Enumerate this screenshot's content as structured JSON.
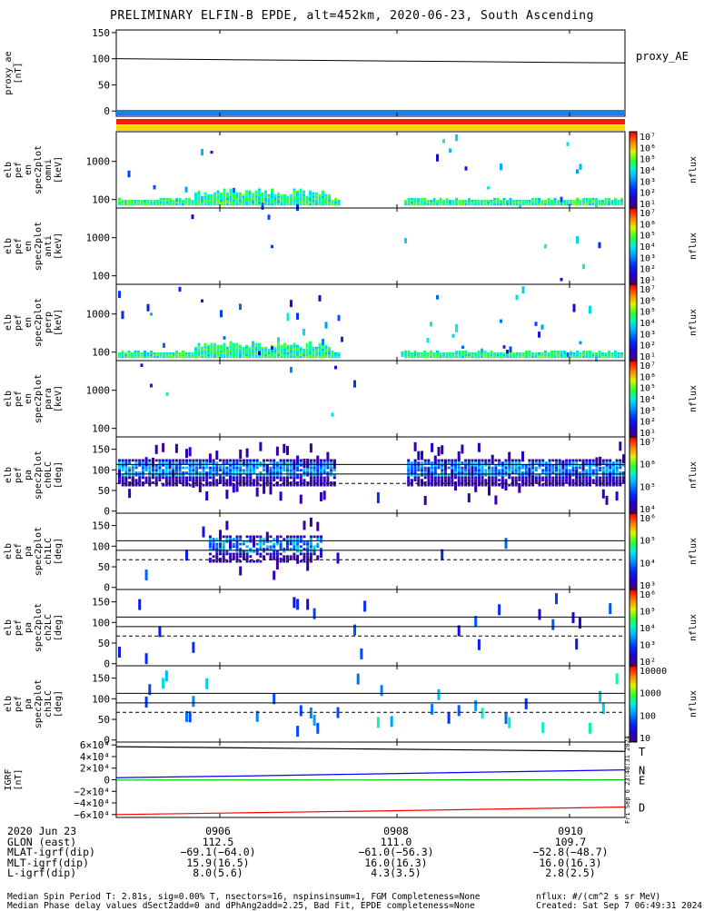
{
  "title": "PRELIMINARY ELFIN-B EPDE, alt=452km, 2020-06-23, South Ascending",
  "colors": {
    "frame": "#000000",
    "bar_blue": "#1f7fe0",
    "bar_red": "#ff1a00",
    "bar_yellow": "#ffd800",
    "bfield_T": "#000000",
    "bfield_N": "#0000ff",
    "bfield_E": "#00c000",
    "bfield_D": "#ff0000"
  },
  "panels": [
    {
      "id": "proxy_ae",
      "ylabel": [
        "proxy_ae",
        "[nT]"
      ],
      "right_label": "proxy_AE",
      "yticks": [
        "150",
        "100",
        "50",
        "0"
      ]
    },
    {
      "id": "en_omni",
      "ylabel": [
        "elb",
        "pef",
        "en",
        "spec2plot",
        "omni",
        "[keV]"
      ],
      "yticks": [
        "1000",
        "100"
      ],
      "cbar": "nflux"
    },
    {
      "id": "en_anti",
      "ylabel": [
        "elb",
        "pef",
        "en",
        "spec2plot",
        "anti",
        "[keV]"
      ],
      "yticks": [
        "1000",
        "100"
      ],
      "cbar": "nflux"
    },
    {
      "id": "en_perp",
      "ylabel": [
        "elb",
        "pef",
        "en",
        "spec2plot",
        "perp",
        "[keV]"
      ],
      "yticks": [
        "1000",
        "100"
      ],
      "cbar": "nflux"
    },
    {
      "id": "en_para",
      "ylabel": [
        "elb",
        "pef",
        "en",
        "spec2plot",
        "para",
        "[keV]"
      ],
      "yticks": [
        "1000",
        "100"
      ],
      "cbar": "nflux"
    },
    {
      "id": "pa_ch0",
      "ylabel": [
        "elb",
        "pef",
        "pa",
        "spec2plot",
        "ch0LC",
        "[deg]"
      ],
      "yticks": [
        "150",
        "100",
        "50",
        "0"
      ],
      "cbar": "nflux"
    },
    {
      "id": "pa_ch1",
      "ylabel": [
        "elb",
        "pef",
        "pa",
        "spec2plot",
        "ch1LC",
        "[deg]"
      ],
      "yticks": [
        "150",
        "100",
        "50",
        "0"
      ],
      "cbar": "nflux"
    },
    {
      "id": "pa_ch2",
      "ylabel": [
        "elb",
        "pef",
        "pa",
        "spec2plot",
        "ch2LC",
        "[deg]"
      ],
      "yticks": [
        "150",
        "100",
        "50",
        "0"
      ],
      "cbar": "nflux"
    },
    {
      "id": "pa_ch3",
      "ylabel": [
        "elb",
        "pef",
        "pa",
        "spec2plot",
        "ch3LC",
        "[deg]"
      ],
      "yticks": [
        "150",
        "100",
        "50",
        "0"
      ],
      "cbar": "nflux"
    },
    {
      "id": "bfield",
      "ylabel": [
        "IGRF",
        "[nT]"
      ],
      "yticks": [
        "6×10⁴",
        "4×10⁴",
        "2×10⁴",
        "0",
        "−2×10⁴",
        "−4×10⁴",
        "−6×10⁴"
      ],
      "components": [
        "T",
        "N",
        "E",
        "D"
      ],
      "side_text": "Fri Sep  6 23:48:31 2024"
    }
  ],
  "colorbar_ticks": {
    "en": [
      "10⁷",
      "10⁶",
      "10⁵",
      "10⁴",
      "10³",
      "10²",
      "10¹"
    ],
    "ch0": [
      "10⁷",
      "10⁶",
      "10⁵",
      "10⁴"
    ],
    "ch1": [
      "10⁶",
      "10⁵",
      "10⁴",
      "10³"
    ],
    "ch2": [
      "10⁶",
      "10⁵",
      "10⁴",
      "10³",
      "10²"
    ],
    "ch3": [
      "10000",
      "1000",
      "100",
      "10"
    ]
  },
  "footer": {
    "rows": [
      {
        "label": "2020 Jun 23",
        "values": [
          "0906",
          "0908",
          "0910"
        ]
      },
      {
        "label": "GLON (east)",
        "values": [
          "112.5",
          "111.0",
          "109.7"
        ]
      },
      {
        "label": "MLAT-igrf(dip)",
        "values": [
          "−69.1(−64.0)",
          "−61.0(−56.3)",
          "−52.8(−48.7)"
        ]
      },
      {
        "label": "MLT-igrf(dip)",
        "values": [
          "15.9(16.5)",
          "16.0(16.3)",
          "16.0(16.3)"
        ]
      },
      {
        "label": "L-igrf(dip)",
        "values": [
          "8.0(5.6)",
          "4.3(3.5)",
          "2.8(2.5)"
        ]
      }
    ],
    "note1": "Median Spin Period T: 2.81s, sig=0.00% T, nsectors=16, nspinsinsum=1, FGM Completeness=None",
    "note1_right": "nflux: #/(cm^2 s sr MeV)",
    "note2": "Median Phase delay values dSect2add=0 and dPhAng2add=2.25, Bad Fit, EPDE completeness=None",
    "note2_right": "Created: Sat Sep  7 06:49:31 2024"
  },
  "chart_data": {
    "type": "heatmap",
    "title": "PRELIMINARY ELFIN-B EPDE, alt=452km, 2020-06-23, South Ascending",
    "x": {
      "ticks": [
        "0906",
        "0908",
        "0910"
      ]
    },
    "proxy_ae": {
      "ylim": [
        -10,
        155
      ],
      "values": [
        100,
        99,
        98,
        97,
        96,
        95,
        94,
        93,
        92
      ]
    },
    "bfield": {
      "ylim": [
        -65000,
        65000
      ],
      "T": [
        57000,
        55000,
        53000,
        51000,
        49000
      ],
      "N": [
        3500,
        6500,
        10000,
        13500,
        17000
      ],
      "E": [
        -500,
        -400,
        -300,
        -200,
        -100
      ],
      "D": [
        -60000,
        -57000,
        -54000,
        -50500,
        -47000
      ]
    }
  }
}
